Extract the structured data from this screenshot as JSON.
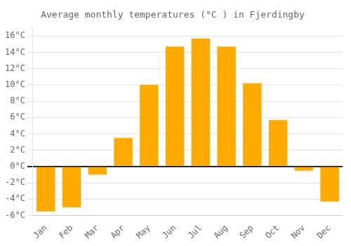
{
  "chart_data": {
    "type": "bar",
    "title": "Average monthly temperatures (°C ) in Fjerdingby",
    "categories": [
      "Jan",
      "Feb",
      "Mar",
      "Apr",
      "May",
      "Jun",
      "Jul",
      "Aug",
      "Sep",
      "Oct",
      "Nov",
      "Dec"
    ],
    "values": [
      -5.5,
      -5.0,
      -1.0,
      3.5,
      10.0,
      14.7,
      15.7,
      14.7,
      10.2,
      5.7,
      -0.5,
      -4.3
    ],
    "color": "#FFAA00",
    "ylim": [
      -6,
      17
    ],
    "yticks": [
      {
        "value": -6,
        "label": "-6°C"
      },
      {
        "value": -4,
        "label": "-4°C"
      },
      {
        "value": -2,
        "label": "-2°C"
      },
      {
        "value": 0,
        "label": "0°C"
      },
      {
        "value": 2,
        "label": "2°C"
      },
      {
        "value": 4,
        "label": "4°C"
      },
      {
        "value": 6,
        "label": "6°C"
      },
      {
        "value": 8,
        "label": "8°C"
      },
      {
        "value": 10,
        "label": "10°C"
      },
      {
        "value": 12,
        "label": "12°C"
      },
      {
        "value": 14,
        "label": "14°C"
      },
      {
        "value": 16,
        "label": "16°C"
      }
    ],
    "grid": true
  }
}
